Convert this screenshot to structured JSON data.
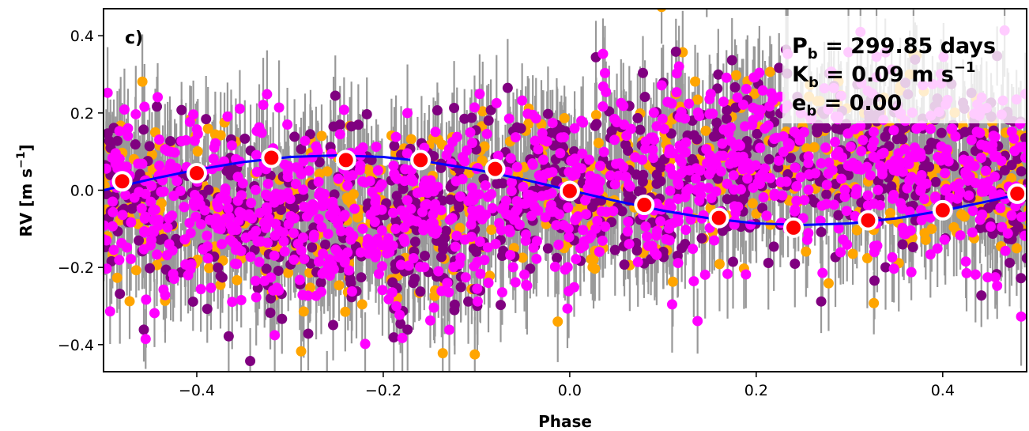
{
  "chart_data": {
    "type": "scatter",
    "panel_label": "c)",
    "xlabel": "Phase",
    "ylabel_main": "RV [m s",
    "ylabel_sup": "−1",
    "ylabel_end": "]",
    "xlim": [
      -0.5,
      0.49
    ],
    "ylim": [
      -0.47,
      0.47
    ],
    "grid": false,
    "xticks": [
      -0.4,
      -0.2,
      0.0,
      0.2,
      0.4
    ],
    "xtick_labels": [
      "−0.4",
      "−0.2",
      "0.0",
      "0.2",
      "0.4"
    ],
    "yticks": [
      -0.4,
      -0.2,
      0.0,
      0.2,
      0.4
    ],
    "ytick_labels": [
      "−0.4",
      "−0.2",
      "0.0",
      "0.2",
      "0.4"
    ],
    "annotation": {
      "line1": {
        "sym": "P",
        "sub": "b",
        "rest": " = 299.85 days"
      },
      "line2": {
        "sym": "K",
        "sub": "b",
        "rest": " = 0.09 m s",
        "sup": "−1"
      },
      "line3": {
        "sym": "e",
        "sub": "b",
        "rest": " = 0.00"
      }
    },
    "colors": {
      "errorbar": "#999999",
      "series_a": "#ffa500",
      "series_b": "#800080",
      "series_c": "#ff00ff",
      "binned_fill": "#ff0000",
      "binned_edge": "#ffffff",
      "model": "#0000ff"
    },
    "binned": {
      "x": [
        -0.48,
        -0.4,
        -0.32,
        -0.24,
        -0.16,
        -0.08,
        0.0,
        0.08,
        0.16,
        0.24,
        0.32,
        0.4,
        0.48
      ],
      "y": [
        0.023,
        0.044,
        0.084,
        0.078,
        0.078,
        0.055,
        -0.002,
        -0.038,
        -0.072,
        -0.097,
        -0.078,
        -0.052,
        -0.009
      ]
    },
    "model": {
      "x": [
        -0.5,
        -0.45,
        -0.4,
        -0.35,
        -0.3,
        -0.25,
        -0.2,
        -0.15,
        -0.1,
        -0.05,
        0.0,
        0.05,
        0.1,
        0.15,
        0.2,
        0.25,
        0.3,
        0.35,
        0.4,
        0.45,
        0.49
      ],
      "y": [
        0.0,
        0.028,
        0.053,
        0.073,
        0.086,
        0.09,
        0.086,
        0.073,
        0.053,
        0.028,
        0.0,
        -0.028,
        -0.053,
        -0.073,
        -0.086,
        -0.09,
        -0.086,
        -0.073,
        -0.053,
        -0.028,
        -0.006
      ]
    },
    "scatter_note": "Thousands of individual RVs in three colours with grey error bars, approx. normally distributed about the model with sigma ~0.12 m/s"
  }
}
